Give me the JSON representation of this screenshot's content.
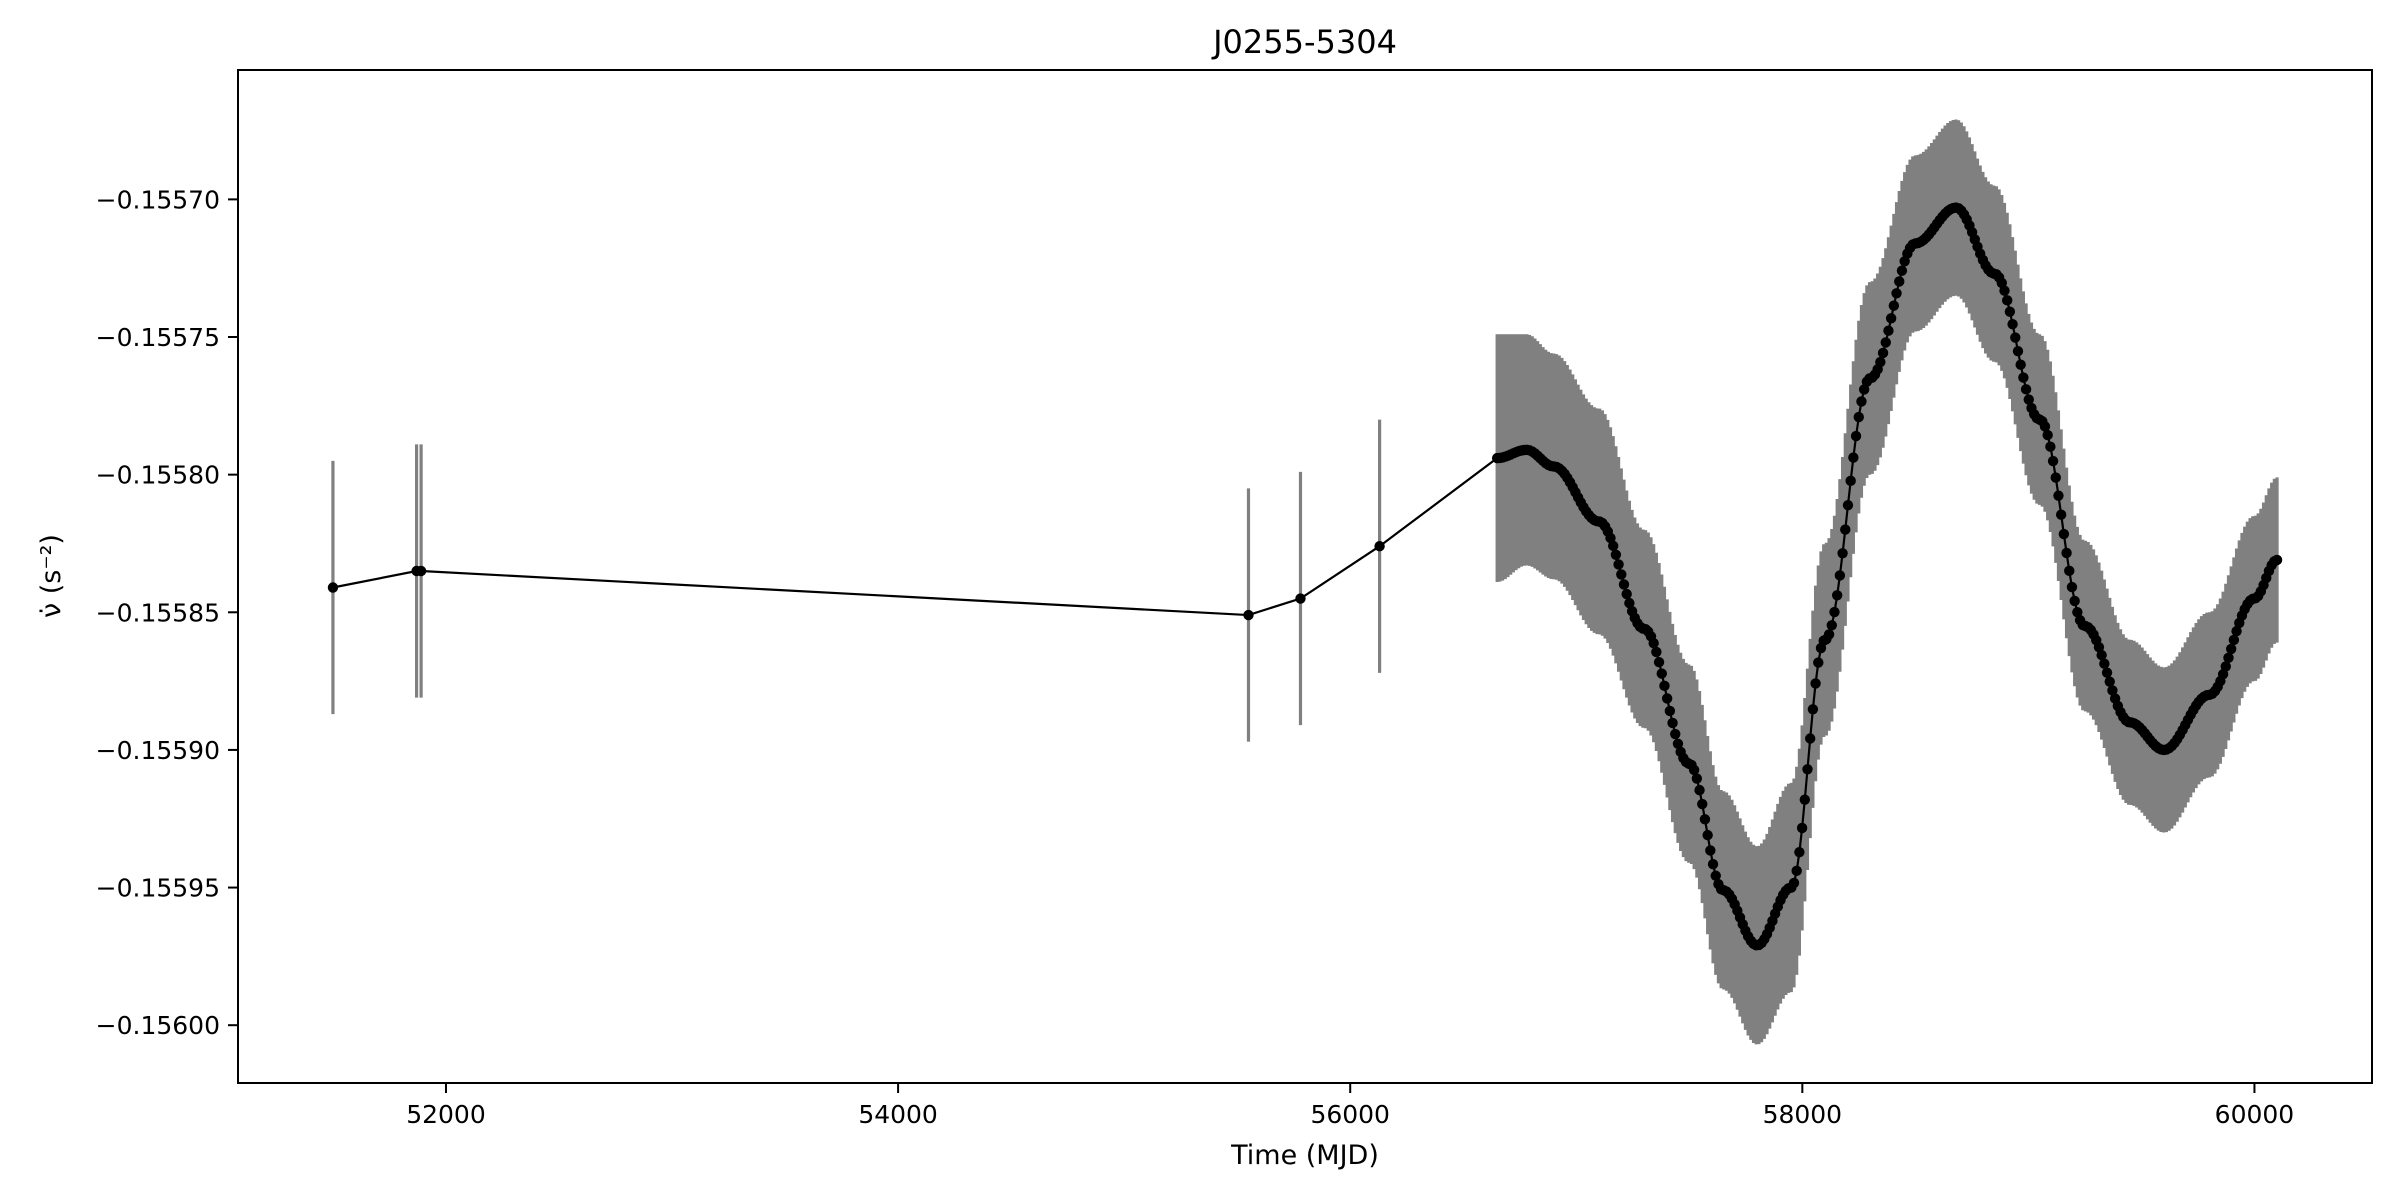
{
  "chart_data": {
    "type": "scatter",
    "title": "J0255-5304",
    "xlabel": "Time (MJD)",
    "ylabel": "ν̇ (s⁻²)",
    "xlim": [
      51080,
      60520
    ],
    "ylim": [
      -0.156021,
      -0.155653
    ],
    "xticks": [
      52000,
      54000,
      56000,
      58000,
      60000
    ],
    "xtick_labels": [
      "52000",
      "54000",
      "56000",
      "58000",
      "60000"
    ],
    "yticks": [
      -0.1557,
      -0.15575,
      -0.1558,
      -0.15585,
      -0.1559,
      -0.15595,
      -0.156
    ],
    "ytick_labels": [
      "−0.15570",
      "−0.15575",
      "−0.15580",
      "−0.15585",
      "−0.15590",
      "−0.15595",
      "−0.15600"
    ],
    "grid": false,
    "legend": "none",
    "colors": {
      "line": "#000000",
      "marker": "#000000",
      "errorbar": "#808080"
    },
    "early_points": [
      {
        "x": 51500,
        "y": -0.155841,
        "err": 4.6e-05
      },
      {
        "x": 51870,
        "y": -0.155835,
        "err": 4.6e-05
      },
      {
        "x": 51890,
        "y": -0.155835,
        "err": 4.6e-05
      },
      {
        "x": 55550,
        "y": -0.155851,
        "err": 4.6e-05
      },
      {
        "x": 55780,
        "y": -0.155845,
        "err": 4.6e-05
      },
      {
        "x": 56130,
        "y": -0.155826,
        "err": 4.6e-05
      }
    ],
    "dense_series": {
      "x_start": 56650,
      "x_end": 60100,
      "points": 290,
      "knots": [
        {
          "x": 56650,
          "y": -0.155794,
          "err": 4.5e-05
        },
        {
          "x": 56780,
          "y": -0.155791,
          "err": 4.2e-05
        },
        {
          "x": 56900,
          "y": -0.155797,
          "err": 4.1e-05
        },
        {
          "x": 57100,
          "y": -0.155817,
          "err": 4.1e-05
        },
        {
          "x": 57300,
          "y": -0.155856,
          "err": 3.6e-05
        },
        {
          "x": 57500,
          "y": -0.155905,
          "err": 3.6e-05
        },
        {
          "x": 57650,
          "y": -0.155951,
          "err": 3.6e-05
        },
        {
          "x": 57800,
          "y": -0.155971,
          "err": 3.6e-05
        },
        {
          "x": 57950,
          "y": -0.15595,
          "err": 3.8e-05
        },
        {
          "x": 58100,
          "y": -0.15586,
          "err": 3.5e-05
        },
        {
          "x": 58300,
          "y": -0.155765,
          "err": 3.5e-05
        },
        {
          "x": 58500,
          "y": -0.155716,
          "err": 3.2e-05
        },
        {
          "x": 58680,
          "y": -0.155703,
          "err": 3.2e-05
        },
        {
          "x": 58850,
          "y": -0.155727,
          "err": 3.2e-05
        },
        {
          "x": 59050,
          "y": -0.15578,
          "err": 3.1e-05
        },
        {
          "x": 59250,
          "y": -0.155855,
          "err": 3.1e-05
        },
        {
          "x": 59450,
          "y": -0.15589,
          "err": 3e-05
        },
        {
          "x": 59600,
          "y": -0.1559,
          "err": 3e-05
        },
        {
          "x": 59800,
          "y": -0.15588,
          "err": 3e-05
        },
        {
          "x": 60000,
          "y": -0.155845,
          "err": 3e-05
        },
        {
          "x": 60100,
          "y": -0.155831,
          "err": 3e-05
        }
      ]
    }
  }
}
